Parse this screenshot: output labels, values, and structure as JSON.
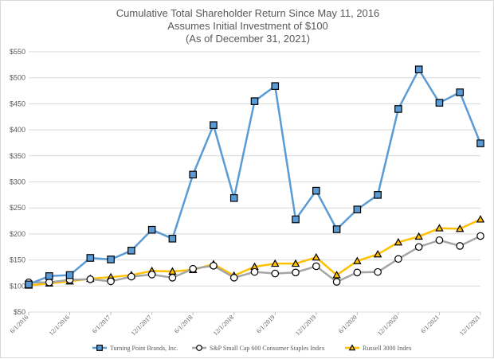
{
  "chart_data": {
    "type": "line",
    "title": "Cumulative Total Shareholder Return Since May 11, 2016",
    "subtitle": "Assumes Initial Investment of $100",
    "subtitle2": "(As of December 31, 2021)",
    "xlabel": "",
    "ylabel": "",
    "ylim": [
      50,
      550
    ],
    "yticks": [
      "$50",
      "$100",
      "$150",
      "$200",
      "$250",
      "$300",
      "$350",
      "$400",
      "$450",
      "$500",
      "$550"
    ],
    "grid": true,
    "legend": "bottom",
    "x_tick_labels": [
      "6/1/2016",
      "12/1/2016",
      "6/1/2017",
      "12/1/2017",
      "6/1/2018",
      "12/1/2018",
      "6/1/2019",
      "12/1/2019",
      "6/1/2020",
      "12/1/2020",
      "6/1/2021",
      "12/1/2021"
    ],
    "series": [
      {
        "name": "Turning Point Brands, Inc.",
        "color": "#5b9bd5",
        "marker": "square",
        "values": [
          103,
          119,
          121,
          154,
          151,
          168,
          208,
          191,
          314,
          409,
          269,
          455,
          484,
          228,
          283,
          209,
          247,
          275,
          440,
          516,
          452,
          472,
          374
        ]
      },
      {
        "name": "S&P Small Cap 600 Consumer Staples Index",
        "color": "#a5a5a5",
        "marker": "circle",
        "values": [
          107,
          107,
          112,
          113,
          109,
          118,
          122,
          116,
          133,
          139,
          116,
          127,
          124,
          126,
          138,
          108,
          126,
          127,
          152,
          175,
          188,
          177,
          196
        ]
      },
      {
        "name": "Russell 3000 Index",
        "color": "#ffc000",
        "marker": "triangle",
        "values": [
          101,
          105,
          109,
          114,
          117,
          121,
          129,
          128,
          131,
          142,
          120,
          137,
          143,
          143,
          155,
          121,
          148,
          161,
          184,
          195,
          211,
          210,
          228
        ]
      }
    ]
  }
}
